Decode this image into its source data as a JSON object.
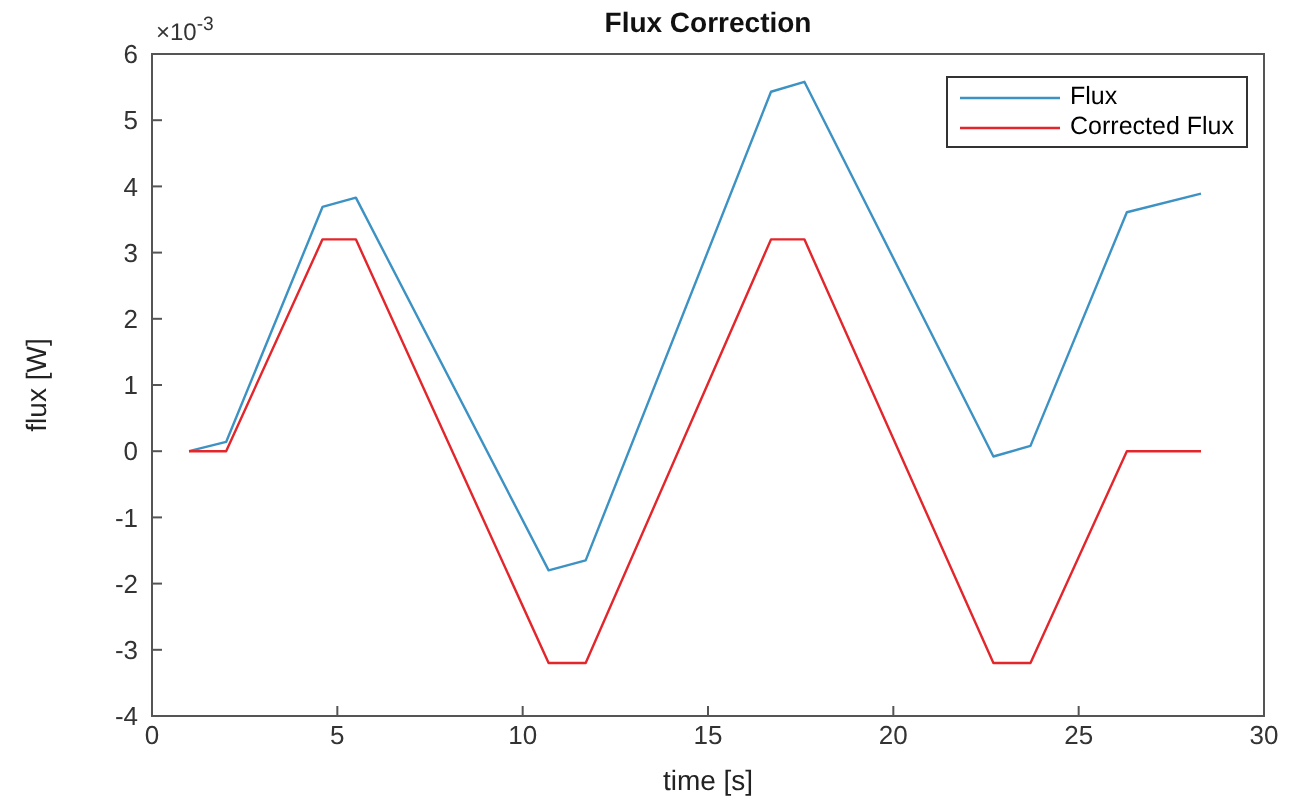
{
  "chart_data": {
    "type": "line",
    "title": "Flux Correction",
    "xlabel": "time [s]",
    "ylabel": "flux [W]",
    "annotations": [
      "×10$^{-3}$"
    ],
    "x": [
      1,
      2,
      4.6,
      5.5,
      10.7,
      11.7,
      16.7,
      17.6,
      22.7,
      23.7,
      26.3,
      28.3
    ],
    "series": [
      {
        "name": "Flux",
        "color": "#3d92c4",
        "values": [
          0,
          0.14,
          3.69,
          3.83,
          -1.8,
          -1.65,
          5.43,
          5.58,
          -0.08,
          0.08,
          3.61,
          3.89
        ]
      },
      {
        "name": "Corrected Flux",
        "color": "#e3262b",
        "values": [
          0,
          0,
          3.2,
          3.2,
          -3.2,
          -3.2,
          3.2,
          3.2,
          -3.2,
          -3.2,
          0,
          0
        ]
      }
    ],
    "xlim": [
      0,
      30
    ],
    "xticks": [
      0,
      5,
      10,
      15,
      20,
      25,
      30
    ],
    "ylim": [
      -4,
      6
    ],
    "yticks": [
      -4,
      -3,
      -2,
      -1,
      0,
      1,
      2,
      3,
      4,
      5,
      6
    ],
    "grid": false,
    "legend": "top right",
    "marker": "none",
    "line_style": "solid"
  }
}
